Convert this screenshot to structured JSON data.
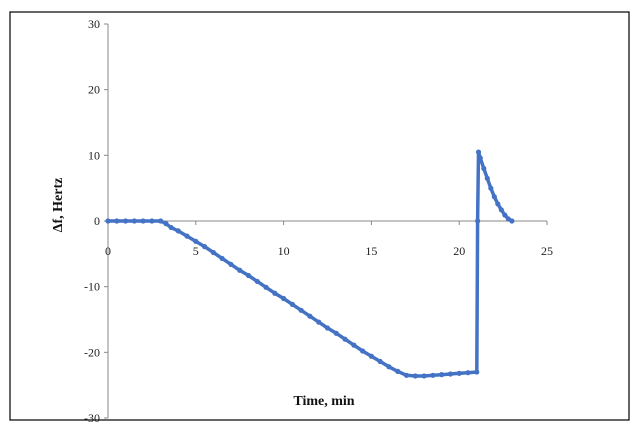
{
  "chart_data": {
    "type": "line",
    "title": "",
    "xlabel": "Time, min",
    "ylabel": "Δf, Hertz",
    "xlim": [
      0,
      25
    ],
    "ylim": [
      -30,
      30
    ],
    "xticks": [
      "0",
      "5",
      "10",
      "15",
      "20",
      "25"
    ],
    "yticks": [
      "30",
      "20",
      "10",
      "0",
      "-10",
      "-20",
      "-30"
    ],
    "grid": false,
    "legend": "none",
    "series_color": "#4472C4",
    "series": [
      {
        "x": [
          0,
          0.5,
          1,
          1.5,
          2,
          2.5,
          3,
          3.3,
          3.6,
          4,
          4.5,
          5,
          5.5,
          6,
          6.5,
          7,
          7.5,
          8,
          8.5,
          9,
          9.5,
          10,
          10.5,
          11,
          11.5,
          12,
          12.5,
          13,
          13.5,
          14,
          14.5,
          15,
          15.5,
          16,
          16.5,
          17,
          17.5,
          18,
          18.5,
          19,
          19.5,
          20,
          20.5,
          21,
          21.05,
          21.1,
          21.2,
          21.4,
          21.6,
          21.8,
          22,
          22.2,
          22.4,
          22.6,
          22.8,
          23
        ],
        "y": [
          0,
          0,
          0,
          0,
          0,
          0,
          0,
          -0.4,
          -1.0,
          -1.5,
          -2.3,
          -3.1,
          -3.9,
          -4.8,
          -5.7,
          -6.6,
          -7.5,
          -8.3,
          -9.2,
          -10.1,
          -11.0,
          -11.8,
          -12.7,
          -13.6,
          -14.5,
          -15.4,
          -16.3,
          -17.1,
          -18.0,
          -18.9,
          -19.8,
          -20.6,
          -21.4,
          -22.2,
          -22.9,
          -23.5,
          -23.6,
          -23.6,
          -23.5,
          -23.4,
          -23.3,
          -23.2,
          -23.1,
          -23.0,
          0,
          10.5,
          9.6,
          8.0,
          6.5,
          5.0,
          3.7,
          2.6,
          1.7,
          0.9,
          0.3,
          0
        ]
      }
    ]
  }
}
